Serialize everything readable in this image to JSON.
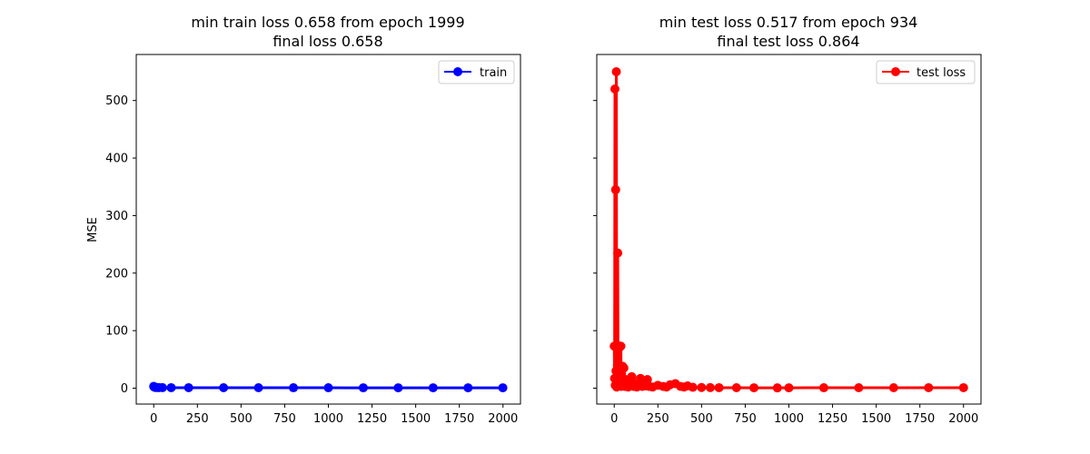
{
  "chart_data": [
    {
      "type": "line",
      "title_line1": "min train loss 0.658 from epoch 1999",
      "title_line2": "final loss 0.658",
      "xlabel": "",
      "ylabel": "MSE",
      "xlim": [
        -100,
        2100
      ],
      "ylim": [
        -27.6,
        580.0
      ],
      "xticks": [
        0,
        250,
        500,
        750,
        1000,
        1250,
        1500,
        1750,
        2000
      ],
      "yticks": [
        0,
        100,
        200,
        300,
        400,
        500
      ],
      "legend_position": "top-right",
      "series": [
        {
          "name": "train",
          "color": "#0000ff",
          "marker": "circle",
          "x": [
            0,
            2,
            5,
            10,
            20,
            30,
            50,
            100,
            200,
            400,
            600,
            800,
            1000,
            1200,
            1400,
            1600,
            1800,
            1999
          ],
          "y": [
            3.2,
            2.2,
            1.6,
            1.3,
            1.1,
            1.0,
            0.95,
            0.9,
            0.85,
            0.8,
            0.77,
            0.74,
            0.72,
            0.7,
            0.69,
            0.67,
            0.66,
            0.658
          ]
        }
      ]
    },
    {
      "type": "line",
      "title_line1": "min test loss 0.517 from epoch 934",
      "title_line2": "final test loss 0.864",
      "xlabel": "",
      "ylabel": "",
      "xlim": [
        -100,
        2100
      ],
      "ylim": [
        -27.6,
        580.0
      ],
      "xticks": [
        0,
        250,
        500,
        750,
        1000,
        1250,
        1500,
        1750,
        2000
      ],
      "yticks": [
        0,
        100,
        200,
        300,
        400,
        500
      ],
      "legend_position": "top-right",
      "series": [
        {
          "name": "test loss",
          "color": "#ff0000",
          "marker": "circle",
          "x": [
            0,
            2,
            4,
            6,
            8,
            10,
            12,
            14,
            16,
            18,
            20,
            22,
            24,
            26,
            28,
            30,
            32,
            35,
            38,
            40,
            42,
            45,
            48,
            50,
            55,
            60,
            65,
            70,
            80,
            90,
            100,
            110,
            120,
            130,
            140,
            150,
            160,
            170,
            180,
            190,
            200,
            220,
            250,
            280,
            300,
            320,
            350,
            380,
            400,
            420,
            450,
            500,
            550,
            600,
            700,
            800,
            934,
            1000,
            1200,
            1400,
            1600,
            1800,
            2000
          ],
          "y": [
            73,
            17,
            520,
            5,
            345,
            30,
            550,
            2,
            75,
            40,
            235,
            8,
            30,
            10,
            70,
            5,
            35,
            15,
            73,
            3,
            25,
            8,
            38,
            5,
            35,
            3,
            15,
            5,
            2,
            4,
            20,
            3,
            8,
            2,
            5,
            17,
            3,
            12,
            4,
            15,
            3,
            2,
            5,
            3,
            2,
            6,
            8,
            3,
            2,
            4,
            1.5,
            1.2,
            1.0,
            0.9,
            0.8,
            0.7,
            0.517,
            0.7,
            0.75,
            0.8,
            0.82,
            0.85,
            0.864
          ]
        }
      ]
    }
  ]
}
